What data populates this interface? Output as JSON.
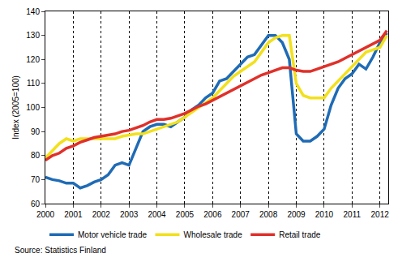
{
  "chart_data": {
    "type": "line",
    "y_label": "Index (2005=100)",
    "source": "Source: Statistics Finland",
    "x": [
      2000,
      2000.25,
      2000.5,
      2000.75,
      2001,
      2001.25,
      2001.5,
      2001.75,
      2002,
      2002.25,
      2002.5,
      2002.75,
      2003,
      2003.25,
      2003.5,
      2003.75,
      2004,
      2004.25,
      2004.5,
      2004.75,
      2005,
      2005.25,
      2005.5,
      2005.75,
      2006,
      2006.25,
      2006.5,
      2006.75,
      2007,
      2007.25,
      2007.5,
      2007.75,
      2008,
      2008.25,
      2008.5,
      2008.75,
      2009,
      2009.25,
      2009.5,
      2009.75,
      2010,
      2010.25,
      2010.5,
      2010.75,
      2011,
      2011.25,
      2011.5,
      2011.75,
      2012,
      2012.25
    ],
    "series": [
      {
        "name": "Motor vehicle trade",
        "color": "#1f6bb5",
        "values": [
          71,
          70,
          69.5,
          68.5,
          68.5,
          66.5,
          67.5,
          69,
          70,
          72,
          76,
          77,
          76,
          83,
          90,
          92,
          93,
          93,
          92,
          94,
          96,
          99,
          101,
          104,
          106,
          111,
          112,
          115,
          118,
          121,
          122,
          126,
          130,
          130,
          127,
          120,
          89,
          86,
          86,
          88,
          91,
          101,
          108,
          112,
          114,
          118,
          116,
          121,
          127,
          131
        ]
      },
      {
        "name": "Wholesale trade",
        "color": "#f2e01c",
        "values": [
          79,
          82,
          85,
          87,
          86,
          87,
          87,
          87,
          87,
          87,
          87,
          88,
          88.5,
          89,
          89,
          90,
          91,
          92,
          93,
          94,
          96,
          98,
          100,
          102,
          104,
          107,
          110,
          113,
          115,
          117,
          119,
          123,
          127,
          129,
          130,
          130,
          110,
          105,
          104,
          104,
          104,
          108,
          111,
          114,
          117,
          120,
          123,
          124,
          125,
          130
        ]
      },
      {
        "name": "Retail trade",
        "color": "#e0302a",
        "values": [
          78,
          80,
          81,
          83,
          84,
          85.5,
          86.5,
          87.5,
          88,
          88.5,
          89,
          90,
          90.5,
          91.5,
          92.5,
          94,
          95,
          95,
          95.5,
          96.5,
          97.5,
          99,
          100.5,
          101.5,
          103,
          104.5,
          106,
          107.5,
          109,
          110.5,
          112,
          113.5,
          114.5,
          115.5,
          116.5,
          116.5,
          115.5,
          115,
          115,
          116,
          117,
          118,
          119,
          120.5,
          122,
          123.5,
          125,
          126.5,
          128,
          132
        ]
      }
    ],
    "xlim": [
      2000,
      2012.3
    ],
    "xticks": [
      2000,
      2001,
      2002,
      2003,
      2004,
      2005,
      2006,
      2007,
      2008,
      2009,
      2010,
      2011,
      2012
    ],
    "ylim": [
      60,
      140
    ],
    "yticks": [
      60,
      70,
      80,
      90,
      100,
      110,
      120,
      130,
      140
    ],
    "grid": "x",
    "legend": "bottom"
  }
}
